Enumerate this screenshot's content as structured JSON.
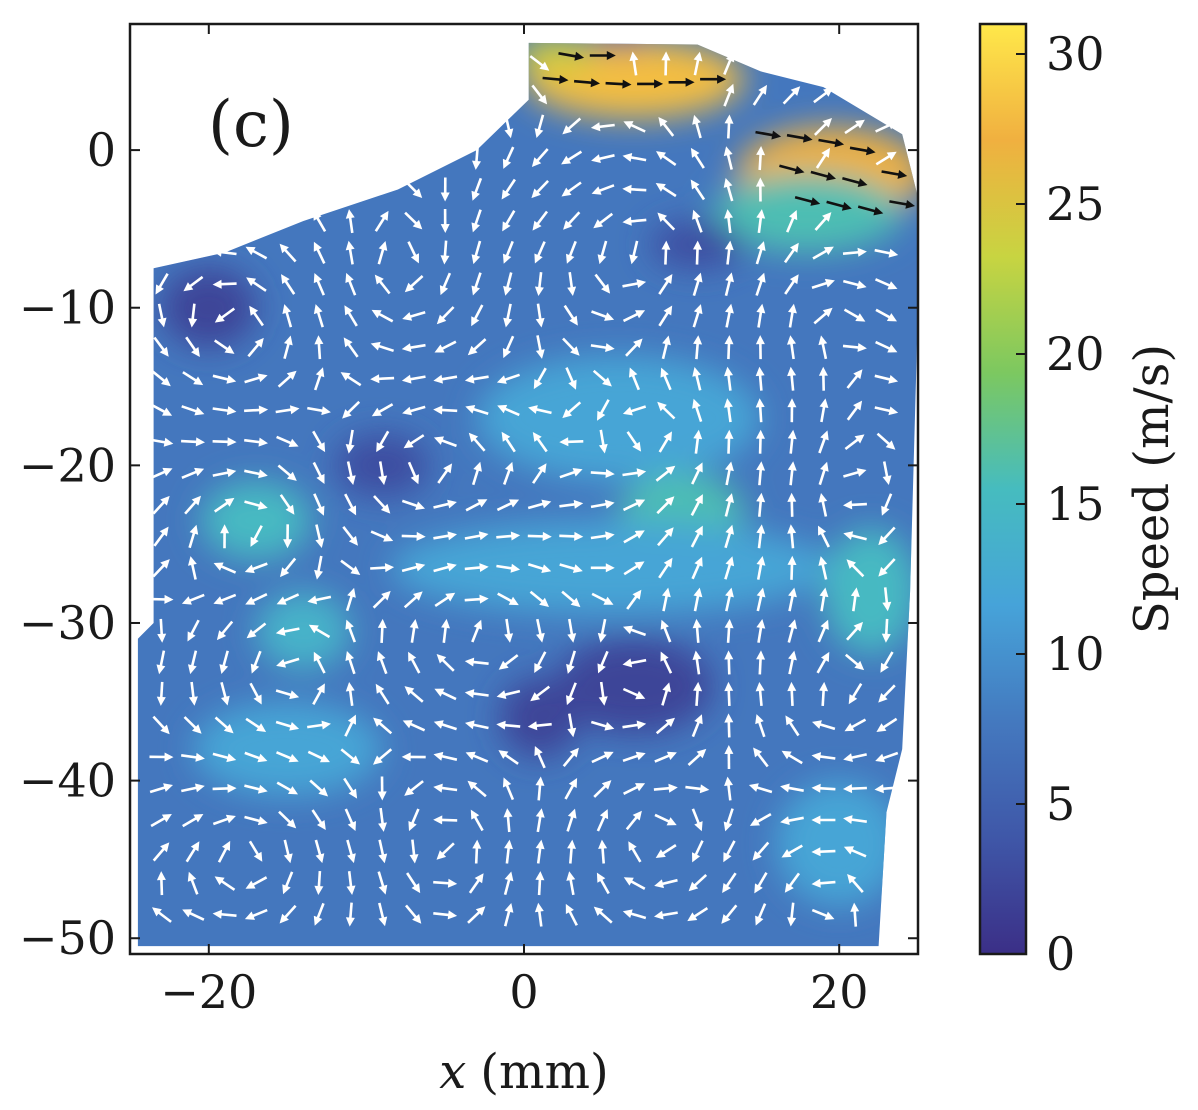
{
  "chart_data": {
    "type": "quiver",
    "panel_label": "(c)",
    "xlabel": "x (mm)",
    "xlabel_var": "x",
    "xlabel_unit": "(mm)",
    "ylabel": "",
    "xlim": [
      -25,
      25
    ],
    "ylim": [
      -51,
      8
    ],
    "xticks": [
      {
        "value": -20,
        "label": "−20"
      },
      {
        "value": 0,
        "label": "0"
      },
      {
        "value": 20,
        "label": "20"
      }
    ],
    "yticks": [
      {
        "value": 0,
        "label": "0"
      },
      {
        "value": -10,
        "label": "−10"
      },
      {
        "value": -20,
        "label": "−20"
      },
      {
        "value": -30,
        "label": "−30"
      },
      {
        "value": -40,
        "label": "−40"
      },
      {
        "value": -50,
        "label": "−50"
      }
    ],
    "colorbar": {
      "label": "Speed (m/s)",
      "range": [
        0,
        31
      ],
      "colormap": "blue-to-yellow",
      "color_stops": [
        "#3b2f87",
        "#3f57a8",
        "#4479bf",
        "#46a3d9",
        "#46bcbf",
        "#7cc860",
        "#c8d441",
        "#f0b040",
        "#ffe84a"
      ],
      "ticks": [
        {
          "value": 0,
          "label": "0"
        },
        {
          "value": 5,
          "label": "5"
        },
        {
          "value": 10,
          "label": "10"
        },
        {
          "value": 15,
          "label": "15"
        },
        {
          "value": 20,
          "label": "20"
        },
        {
          "value": 25,
          "label": "25"
        },
        {
          "value": 30,
          "label": "30"
        }
      ]
    },
    "domain_outline": [
      [
        -23.5,
        -50.5
      ],
      [
        22.5,
        -50.5
      ],
      [
        23,
        -42
      ],
      [
        24,
        -38
      ],
      [
        24.5,
        -28
      ],
      [
        25,
        -10
      ],
      [
        25,
        -3
      ],
      [
        24,
        1
      ],
      [
        19,
        4
      ],
      [
        15,
        5
      ],
      [
        11,
        6.7
      ],
      [
        0.3,
        6.8
      ],
      [
        0.3,
        3.2
      ],
      [
        -3,
        0
      ],
      [
        -8,
        -2.5
      ],
      [
        -14,
        -4.5
      ],
      [
        -19,
        -6.5
      ],
      [
        -23.5,
        -7.5
      ],
      [
        -23.5,
        -30
      ],
      [
        -24.5,
        -31
      ],
      [
        -24.5,
        -50.5
      ]
    ],
    "speed_regions": [
      {
        "x": 7,
        "y": 4.5,
        "rx": 7,
        "ry": 2.5,
        "speed": 28
      },
      {
        "x": 2,
        "y": 6,
        "rx": 2.5,
        "ry": 1.2,
        "speed": 24
      },
      {
        "x": 19.5,
        "y": -1.5,
        "rx": 6,
        "ry": 3,
        "speed": 27
      },
      {
        "x": 18,
        "y": -4,
        "rx": 6,
        "ry": 2.5,
        "speed": 16
      },
      {
        "x": 6,
        "y": -17,
        "rx": 9,
        "ry": 4,
        "speed": 12
      },
      {
        "x": 10,
        "y": -23,
        "rx": 4,
        "ry": 2.5,
        "speed": 16
      },
      {
        "x": 5.5,
        "y": -26.5,
        "rx": 14,
        "ry": 3,
        "speed": 12
      },
      {
        "x": -17,
        "y": -23.5,
        "rx": 3.5,
        "ry": 2.5,
        "speed": 15
      },
      {
        "x": -14,
        "y": -30.5,
        "rx": 3,
        "ry": 2.5,
        "speed": 14
      },
      {
        "x": 22,
        "y": -28,
        "rx": 3,
        "ry": 4,
        "speed": 15
      },
      {
        "x": -15,
        "y": -38,
        "rx": 6,
        "ry": 3,
        "speed": 12
      },
      {
        "x": 20,
        "y": -44,
        "rx": 4,
        "ry": 4,
        "speed": 12
      },
      {
        "x": -20,
        "y": -10,
        "rx": 3,
        "ry": 2.5,
        "speed": 2
      },
      {
        "x": 11,
        "y": -6,
        "rx": 3,
        "ry": 1.5,
        "speed": 3
      },
      {
        "x": 7,
        "y": -34,
        "rx": 5,
        "ry": 3,
        "speed": 2
      },
      {
        "x": 1,
        "y": -36,
        "rx": 2.5,
        "ry": 2.5,
        "speed": 2
      },
      {
        "x": 6,
        "y": 7.2,
        "rx": 2,
        "ry": 0.6,
        "speed": 1
      },
      {
        "x": -9,
        "y": -20,
        "rx": 3,
        "ry": 2,
        "speed": 3
      }
    ],
    "vector_field": {
      "description": "sampled arrow field; angles in degrees counter-clockwise from +x",
      "fast_arrows": [
        {
          "x": 3,
          "y": 6,
          "angle": -10
        },
        {
          "x": 5,
          "y": 6,
          "angle": 0
        },
        {
          "x": 2,
          "y": 4.5,
          "angle": -5
        },
        {
          "x": 4,
          "y": 4.3,
          "angle": -5
        },
        {
          "x": 6,
          "y": 4.2,
          "angle": -3
        },
        {
          "x": 8,
          "y": 4.2,
          "angle": 0
        },
        {
          "x": 10,
          "y": 4.3,
          "angle": 0
        },
        {
          "x": 12,
          "y": 4.5,
          "angle": 0
        },
        {
          "x": 15.5,
          "y": 1,
          "angle": -10
        },
        {
          "x": 17.5,
          "y": 0.8,
          "angle": -10
        },
        {
          "x": 19.5,
          "y": 0.5,
          "angle": -10
        },
        {
          "x": 21.5,
          "y": 0,
          "angle": -10
        },
        {
          "x": 17,
          "y": -1.2,
          "angle": -15
        },
        {
          "x": 19,
          "y": -1.6,
          "angle": -15
        },
        {
          "x": 21,
          "y": -2,
          "angle": -15
        },
        {
          "x": 23.5,
          "y": -1.5,
          "angle": -10
        },
        {
          "x": 18,
          "y": -3.2,
          "angle": -15
        },
        {
          "x": 20,
          "y": -3.5,
          "angle": -15
        },
        {
          "x": 22,
          "y": -3.8,
          "angle": -15
        },
        {
          "x": 24,
          "y": -3.4,
          "angle": -10
        }
      ]
    }
  }
}
